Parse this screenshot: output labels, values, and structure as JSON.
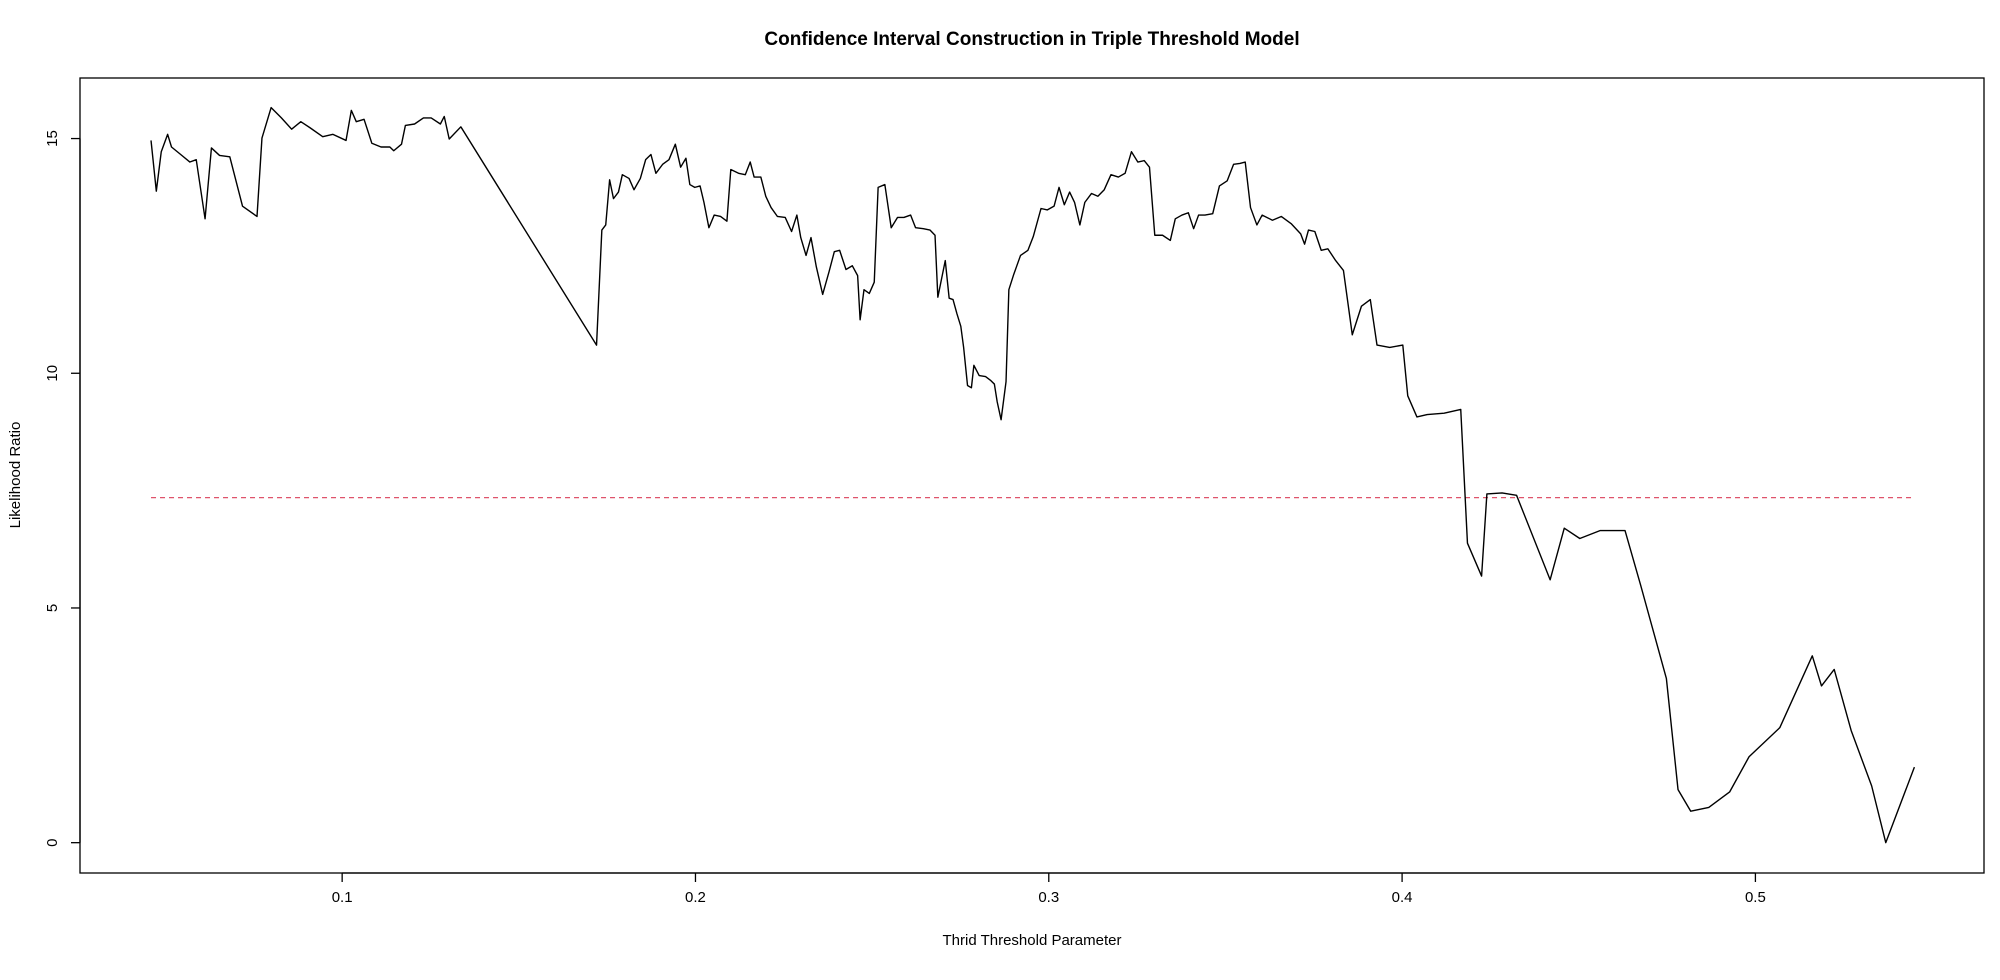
{
  "chart_data": {
    "type": "line",
    "title": "Confidence Interval Construction in Triple Threshold Model",
    "xlabel": "Thrid Threshold Parameter",
    "ylabel": "Likelihood Ratio",
    "x": [
      0.0459,
      0.0474,
      0.0488,
      0.0506,
      0.0517,
      0.0543,
      0.0569,
      0.0587,
      0.0612,
      0.063,
      0.0653,
      0.0682,
      0.0718,
      0.0759,
      0.0773,
      0.0799,
      0.0828,
      0.0857,
      0.0883,
      0.0909,
      0.0945,
      0.0974,
      0.1011,
      0.1026,
      0.104,
      0.1062,
      0.1084,
      0.111,
      0.1135,
      0.1146,
      0.1168,
      0.1179,
      0.1205,
      0.123,
      0.1252,
      0.1278,
      0.1289,
      0.1303,
      0.1336,
      0.172,
      0.1735,
      0.1746,
      0.1757,
      0.1768,
      0.1782,
      0.1793,
      0.1812,
      0.1826,
      0.1844,
      0.1859,
      0.1874,
      0.1888,
      0.1907,
      0.1925,
      0.1943,
      0.1958,
      0.1973,
      0.1984,
      0.1998,
      0.2013,
      0.2024,
      0.2038,
      0.2053,
      0.2071,
      0.2089,
      0.21,
      0.2122,
      0.2141,
      0.2155,
      0.2166,
      0.2185,
      0.2199,
      0.2214,
      0.2232,
      0.2254,
      0.2272,
      0.2287,
      0.2298,
      0.2313,
      0.2327,
      0.2342,
      0.236,
      0.2378,
      0.2393,
      0.2408,
      0.2426,
      0.2444,
      0.2459,
      0.2466,
      0.2477,
      0.2492,
      0.2506,
      0.2517,
      0.2536,
      0.2554,
      0.2572,
      0.259,
      0.2609,
      0.2623,
      0.2645,
      0.2664,
      0.2678,
      0.2686,
      0.2697,
      0.2707,
      0.2718,
      0.2729,
      0.274,
      0.2751,
      0.2759,
      0.277,
      0.2781,
      0.2788,
      0.2803,
      0.2821,
      0.2835,
      0.2846,
      0.2854,
      0.2865,
      0.2879,
      0.2887,
      0.2901,
      0.292,
      0.2941,
      0.2956,
      0.2978,
      0.2996,
      0.3015,
      0.3029,
      0.3044,
      0.3059,
      0.3073,
      0.3088,
      0.3102,
      0.3121,
      0.3139,
      0.3157,
      0.3176,
      0.3197,
      0.3216,
      0.3234,
      0.3252,
      0.327,
      0.3285,
      0.33,
      0.3322,
      0.3344,
      0.3358,
      0.3377,
      0.3395,
      0.341,
      0.3424,
      0.3442,
      0.3464,
      0.3483,
      0.3505,
      0.3523,
      0.3541,
      0.3556,
      0.3571,
      0.3589,
      0.3604,
      0.3633,
      0.3658,
      0.3687,
      0.3713,
      0.3724,
      0.3735,
      0.3753,
      0.3771,
      0.379,
      0.3812,
      0.3834,
      0.3859,
      0.3885,
      0.391,
      0.3929,
      0.3965,
      0.4002,
      0.4016,
      0.4042,
      0.4071,
      0.4119,
      0.4166,
      0.4185,
      0.4225,
      0.424,
      0.4283,
      0.4324,
      0.4419,
      0.4459,
      0.4503,
      0.4561,
      0.4631,
      0.4675,
      0.4748,
      0.4781,
      0.4817,
      0.4868,
      0.4927,
      0.4982,
      0.5069,
      0.5161,
      0.5187,
      0.5223,
      0.5271,
      0.5329,
      0.5369,
      0.545
    ],
    "series": [
      {
        "color": "#000000",
        "values": [
          14.96,
          13.88,
          14.72,
          15.09,
          14.82,
          14.66,
          14.5,
          14.55,
          13.29,
          14.8,
          14.64,
          14.61,
          13.56,
          13.34,
          15.01,
          15.66,
          15.44,
          15.2,
          15.36,
          15.23,
          15.04,
          15.09,
          14.96,
          15.6,
          15.36,
          15.41,
          14.9,
          14.82,
          14.82,
          14.74,
          14.88,
          15.28,
          15.31,
          15.44,
          15.44,
          15.31,
          15.47,
          14.99,
          15.25,
          10.6,
          13.05,
          13.16,
          14.12,
          13.72,
          13.86,
          14.23,
          14.15,
          13.91,
          14.15,
          14.55,
          14.66,
          14.26,
          14.45,
          14.55,
          14.88,
          14.39,
          14.58,
          14.02,
          13.96,
          13.99,
          13.64,
          13.1,
          13.37,
          13.34,
          13.24,
          14.34,
          14.26,
          14.23,
          14.5,
          14.18,
          14.18,
          13.77,
          13.53,
          13.34,
          13.32,
          13.02,
          13.37,
          12.89,
          12.51,
          12.89,
          12.27,
          11.68,
          12.16,
          12.59,
          12.62,
          12.21,
          12.29,
          12.08,
          11.14,
          11.78,
          11.7,
          11.94,
          13.96,
          14.02,
          13.1,
          13.32,
          13.32,
          13.37,
          13.1,
          13.08,
          13.05,
          12.94,
          11.62,
          12.03,
          12.4,
          11.6,
          11.57,
          11.27,
          11.0,
          10.55,
          9.74,
          9.69,
          10.17,
          9.95,
          9.93,
          9.85,
          9.77,
          9.39,
          9.01,
          9.82,
          11.78,
          12.11,
          12.51,
          12.62,
          12.91,
          13.51,
          13.48,
          13.56,
          13.96,
          13.59,
          13.86,
          13.64,
          13.16,
          13.64,
          13.83,
          13.77,
          13.91,
          14.23,
          14.18,
          14.26,
          14.72,
          14.5,
          14.53,
          14.39,
          12.94,
          12.94,
          12.83,
          13.29,
          13.37,
          13.42,
          13.08,
          13.37,
          13.37,
          13.4,
          13.99,
          14.1,
          14.45,
          14.47,
          14.5,
          13.53,
          13.16,
          13.37,
          13.26,
          13.34,
          13.18,
          12.97,
          12.75,
          13.05,
          13.02,
          12.62,
          12.65,
          12.4,
          12.19,
          10.82,
          11.43,
          11.57,
          10.6,
          10.55,
          10.6,
          9.52,
          9.07,
          9.12,
          9.15,
          9.23,
          6.38,
          5.68,
          7.43,
          7.45,
          7.4,
          5.6,
          6.7,
          6.48,
          6.65,
          6.65,
          5.49,
          3.5,
          1.13,
          0.67,
          0.75,
          1.08,
          1.83,
          2.45,
          3.98,
          3.34,
          3.69,
          2.39,
          1.21,
          0.0,
          1.61
        ]
      }
    ],
    "hline": {
      "value": 7.35,
      "color": "#df536b",
      "dashed": true
    },
    "xlim": [
      0.0258,
      0.5647
    ],
    "ylim": [
      -0.646,
      16.29
    ],
    "xticks": [
      0.1,
      0.2,
      0.3,
      0.4,
      0.5
    ],
    "yticks": [
      0,
      5,
      10,
      15
    ]
  }
}
